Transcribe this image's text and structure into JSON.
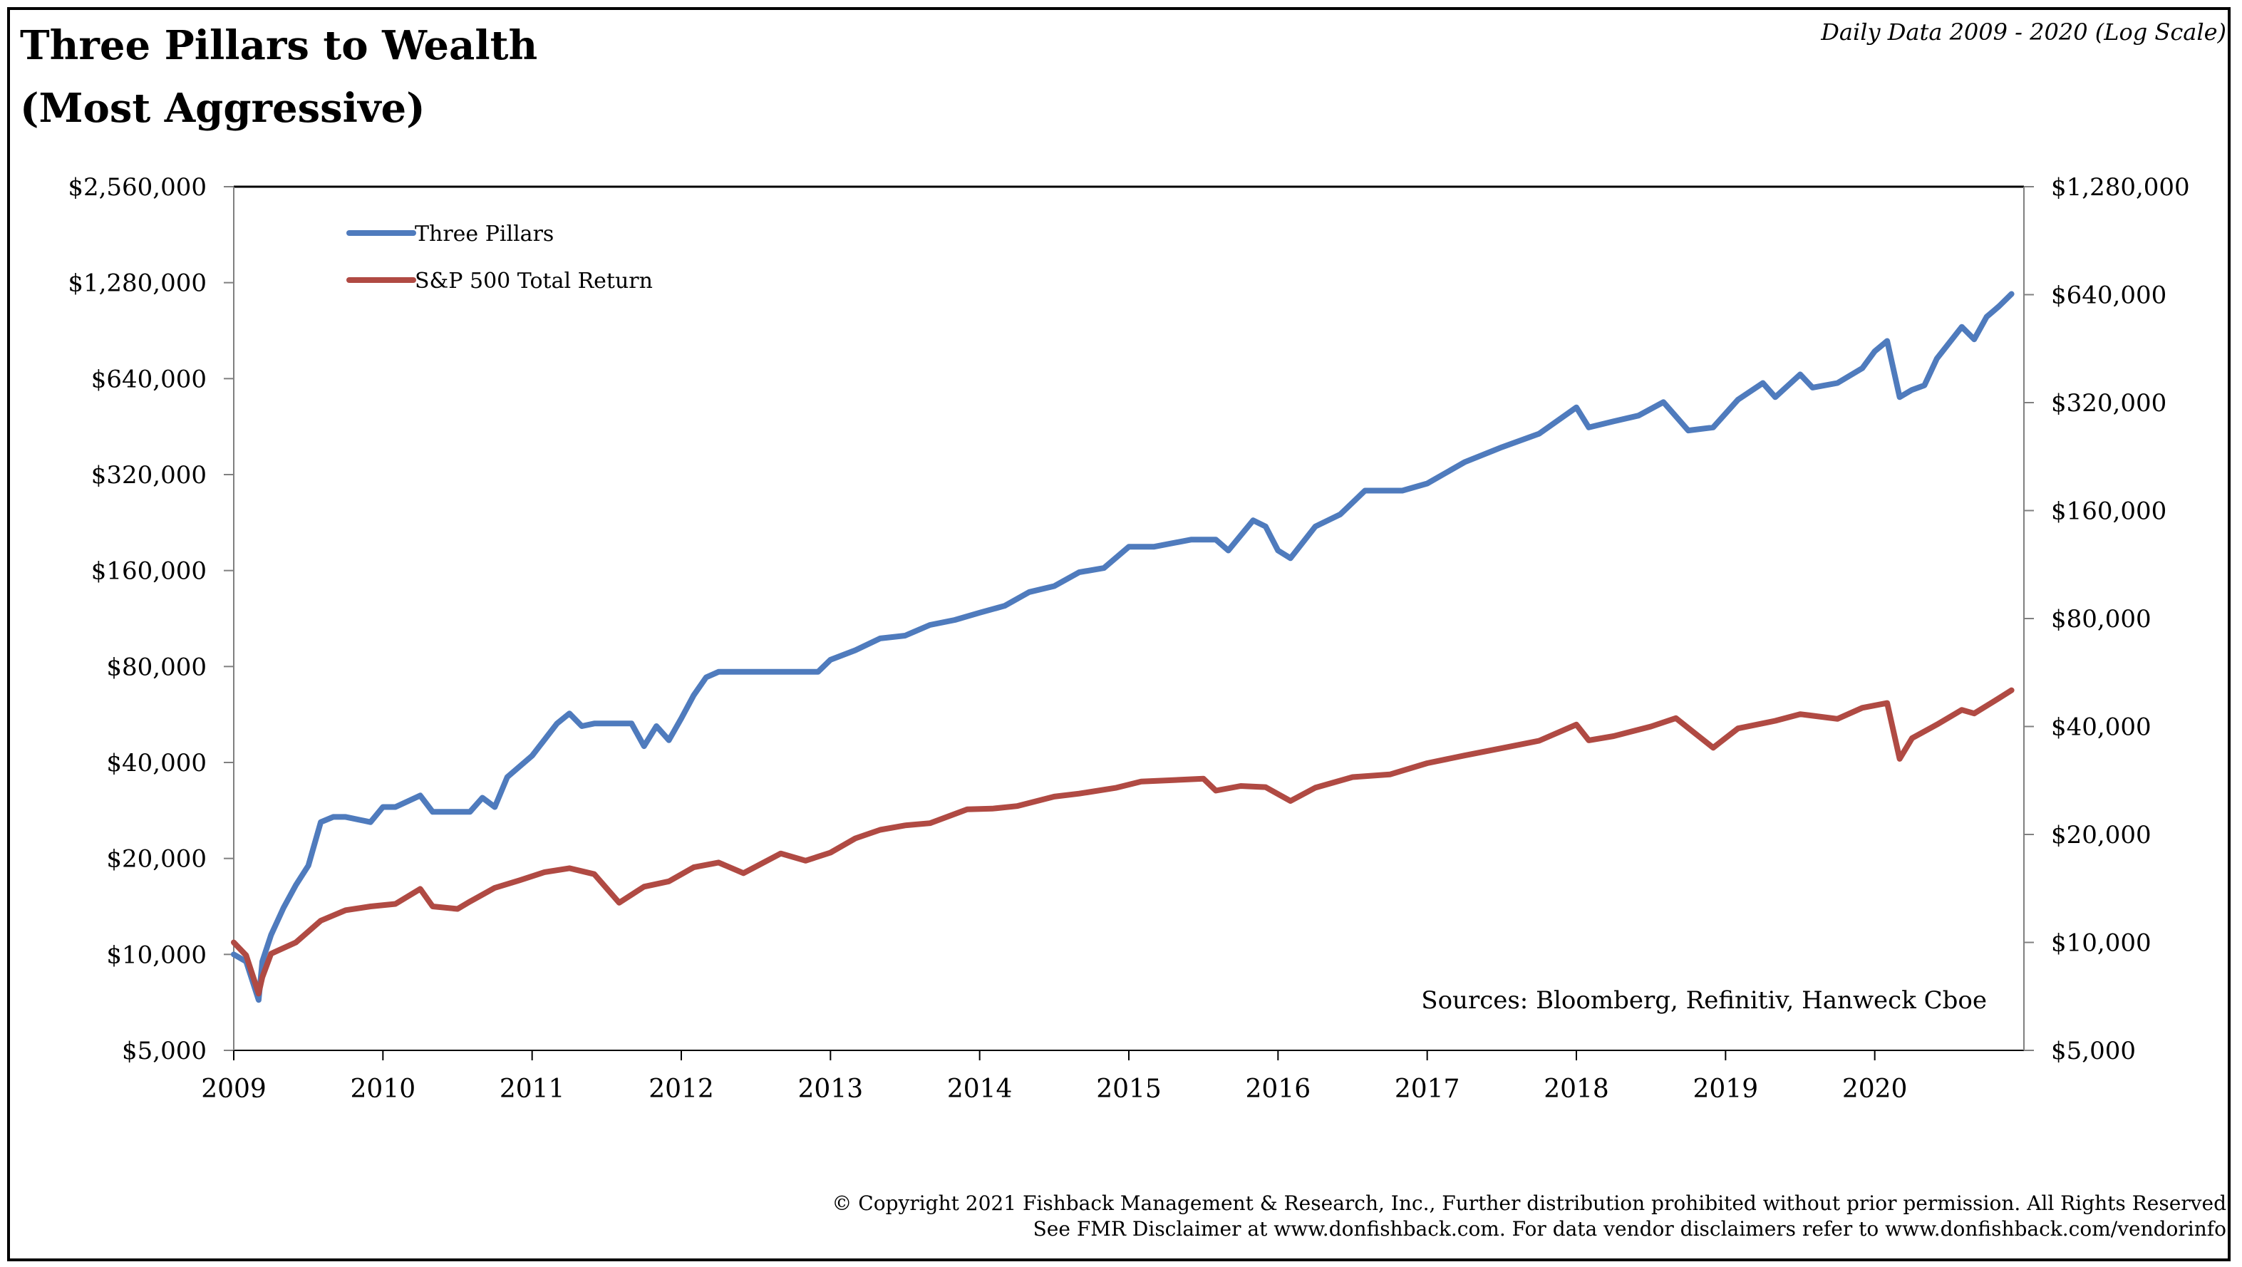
{
  "title_line1": "Three Pillars to Wealth",
  "title_line2": "(Most Aggressive)",
  "subtitle": "Daily Data 2009 - 2020 (Log Scale)",
  "sources": "Sources: Bloomberg, Refinitiv, Hanweck Cboe",
  "footer_line1": "© Copyright 2021 Fishback Management & Research, Inc., Further distribution prohibited without prior permission. All Rights Reserved",
  "footer_line2": "See FMR Disclaimer at www.donfishback.com. For data vendor disclaimers refer to www.donfishback.com/vendorinfo",
  "chart_data": {
    "type": "line",
    "title": "Three Pillars to Wealth (Most Aggressive)",
    "subtitle": "Daily Data 2009 - 2020 (Log Scale)",
    "xlabel": "",
    "ylabel": "",
    "x_ticks": [
      "2009",
      "2010",
      "2011",
      "2012",
      "2013",
      "2014",
      "2015",
      "2016",
      "2017",
      "2018",
      "2019",
      "2020"
    ],
    "xlim": [
      2009,
      2021
    ],
    "y_scale": "log",
    "y_left": {
      "ticks": [
        5000,
        10000,
        20000,
        40000,
        80000,
        160000,
        320000,
        640000,
        1280000,
        2560000
      ],
      "tick_labels": [
        "$5,000",
        "$10,000",
        "$20,000",
        "$40,000",
        "$80,000",
        "$160,000",
        "$320,000",
        "$640,000",
        "$1,280,000",
        "$2,560,000"
      ],
      "lim": [
        5000,
        2560000
      ]
    },
    "y_right": {
      "ticks": [
        5000,
        10000,
        20000,
        40000,
        80000,
        160000,
        320000,
        640000,
        1280000
      ],
      "tick_labels": [
        "$5,000",
        "$10,000",
        "$20,000",
        "$40,000",
        "$80,000",
        "$160,000",
        "$320,000",
        "$640,000",
        "$1,280,000"
      ],
      "lim": [
        5000,
        1280000
      ]
    },
    "grid": false,
    "legend_position": "top-left",
    "series": [
      {
        "name": "Three Pillars",
        "color": "#4F7BBD",
        "axis": "left",
        "x": [
          "2009-01",
          "2009-02",
          "2009-03",
          "2009-03-10",
          "2009-04",
          "2009-05",
          "2009-06",
          "2009-07",
          "2009-08",
          "2009-09",
          "2009-10",
          "2009-12",
          "2010-01",
          "2010-02",
          "2010-04",
          "2010-05",
          "2010-06",
          "2010-08",
          "2010-09",
          "2010-10",
          "2010-11",
          "2011-01",
          "2011-03",
          "2011-04",
          "2011-05",
          "2011-06",
          "2011-08",
          "2011-09",
          "2011-10",
          "2011-11",
          "2011-12",
          "2012-01",
          "2012-02",
          "2012-03",
          "2012-04",
          "2012-06",
          "2012-09",
          "2012-12",
          "2013-01",
          "2013-03",
          "2013-05",
          "2013-07",
          "2013-09",
          "2013-11",
          "2014-01",
          "2014-03",
          "2014-05",
          "2014-07",
          "2014-09",
          "2014-11",
          "2015-01",
          "2015-03",
          "2015-06",
          "2015-08",
          "2015-09",
          "2015-11",
          "2015-12",
          "2016-01",
          "2016-02",
          "2016-04",
          "2016-06",
          "2016-08",
          "2016-10",
          "2016-11",
          "2017-01",
          "2017-04",
          "2017-07",
          "2017-10",
          "2018-01",
          "2018-02",
          "2018-04",
          "2018-06",
          "2018-08",
          "2018-10",
          "2018-12",
          "2019-02",
          "2019-04",
          "2019-05",
          "2019-07",
          "2019-08",
          "2019-10",
          "2019-12",
          "2020-01",
          "2020-02",
          "2020-03",
          "2020-04",
          "2020-05",
          "2020-06",
          "2020-08",
          "2020-09",
          "2020-10",
          "2020-11",
          "2020-12"
        ],
        "y": [
          10000,
          9500,
          7200,
          9500,
          11500,
          14000,
          16500,
          19000,
          26000,
          27000,
          27000,
          26000,
          29000,
          29000,
          31500,
          28000,
          28000,
          28000,
          31000,
          29000,
          36000,
          42000,
          53000,
          57000,
          52000,
          53000,
          53000,
          53000,
          45000,
          52000,
          47000,
          55000,
          65000,
          74000,
          77000,
          77000,
          77000,
          77000,
          84000,
          90000,
          98000,
          100000,
          108000,
          112000,
          118000,
          124000,
          137000,
          143000,
          158000,
          163000,
          190000,
          190000,
          200000,
          200000,
          185000,
          230000,
          220000,
          185000,
          175000,
          220000,
          240000,
          285000,
          285000,
          285000,
          300000,
          350000,
          390000,
          430000,
          520000,
          450000,
          470000,
          490000,
          540000,
          440000,
          450000,
          550000,
          620000,
          560000,
          660000,
          600000,
          620000,
          690000,
          780000,
          840000,
          560000,
          590000,
          610000,
          740000,
          930000,
          850000,
          1000000,
          1080000,
          1180000
        ]
      },
      {
        "name": "S&P 500 Total Return",
        "color": "#B04A43",
        "axis": "right",
        "x": [
          "2009-01",
          "2009-02",
          "2009-03",
          "2009-03-10",
          "2009-04",
          "2009-06",
          "2009-08",
          "2009-10",
          "2009-12",
          "2010-02",
          "2010-04",
          "2010-05",
          "2010-07",
          "2010-08",
          "2010-10",
          "2010-12",
          "2011-02",
          "2011-04",
          "2011-06",
          "2011-08",
          "2011-10",
          "2011-12",
          "2012-02",
          "2012-04",
          "2012-06",
          "2012-09",
          "2012-11",
          "2013-01",
          "2013-03",
          "2013-05",
          "2013-07",
          "2013-09",
          "2013-12",
          "2014-02",
          "2014-04",
          "2014-07",
          "2014-09",
          "2014-12",
          "2015-02",
          "2015-05",
          "2015-07",
          "2015-08",
          "2015-10",
          "2015-12",
          "2016-02",
          "2016-04",
          "2016-07",
          "2016-10",
          "2017-01",
          "2017-04",
          "2017-07",
          "2017-10",
          "2018-01",
          "2018-02",
          "2018-04",
          "2018-07",
          "2018-09",
          "2018-12",
          "2019-02",
          "2019-05",
          "2019-07",
          "2019-10",
          "2019-12",
          "2020-02",
          "2020-03",
          "2020-04",
          "2020-06",
          "2020-08",
          "2020-09",
          "2020-11",
          "2020-12"
        ],
        "y": [
          10000,
          9200,
          7200,
          8000,
          9300,
          10000,
          11500,
          12300,
          12600,
          12800,
          14100,
          12600,
          12400,
          13000,
          14200,
          14900,
          15700,
          16100,
          15500,
          12900,
          14300,
          14800,
          16200,
          16700,
          15600,
          17700,
          16900,
          17800,
          19500,
          20600,
          21200,
          21500,
          23500,
          23600,
          24000,
          25500,
          26000,
          27000,
          28100,
          28400,
          28600,
          26500,
          27300,
          27100,
          24800,
          27000,
          28900,
          29400,
          31600,
          33200,
          34800,
          36500,
          40500,
          36600,
          37600,
          40000,
          42200,
          34900,
          39500,
          41500,
          43300,
          42000,
          45100,
          46500,
          32500,
          37100,
          40500,
          44500,
          43500,
          48000,
          50500
        ]
      }
    ]
  }
}
